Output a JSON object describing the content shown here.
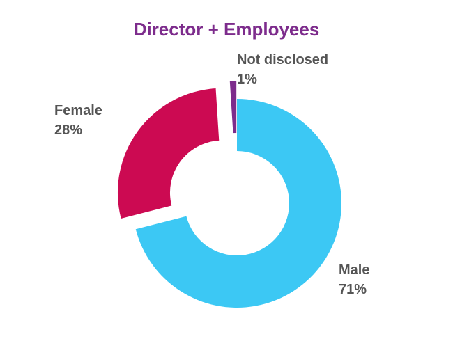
{
  "chart_data": {
    "type": "pie",
    "style": "donut",
    "title": "Director + Employees",
    "slices": [
      {
        "name": "Male",
        "value": 71,
        "value_label": "71%",
        "color": "#3CC8F4"
      },
      {
        "name": "Female",
        "value": 28,
        "value_label": "28%",
        "color": "#CC0A52"
      },
      {
        "name": "Not disclosed",
        "value": 1,
        "value_label": "1%",
        "color": "#7D2C8C"
      }
    ],
    "exploded": [
      "Female",
      "Not disclosed"
    ],
    "title_color": "#7D2C8C",
    "label_color": "#555555"
  }
}
